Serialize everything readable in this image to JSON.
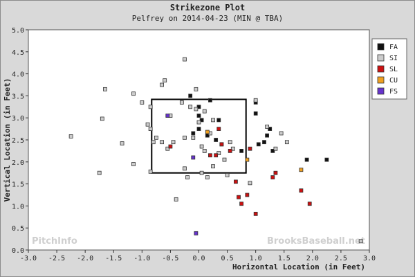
{
  "chart_data": {
    "type": "scatter",
    "title": "Strikezone Plot",
    "subtitle": "Pelfrey on 2014-04-23 (MIN @ TBA)",
    "xlabel": "Horizontal Location (in Feet)",
    "ylabel": "Vertical Location (in Feet)",
    "xlim": [
      -3.0,
      3.0
    ],
    "ylim": [
      0.0,
      5.0
    ],
    "xticks": [
      "-3.0",
      "-2.5",
      "-2.0",
      "-1.5",
      "-1.0",
      "-0.5",
      "0.0",
      "0.5",
      "1.0",
      "1.5",
      "2.0",
      "2.5",
      "3.0"
    ],
    "yticks": [
      "0.0",
      "0.5",
      "1.0",
      "1.5",
      "2.0",
      "2.5",
      "3.0",
      "3.5",
      "4.0",
      "4.5",
      "5.0"
    ],
    "strike_zone": {
      "x": [
        -0.83,
        0.83
      ],
      "y": [
        1.75,
        3.42
      ]
    },
    "legend_position": "right",
    "watermark_left": "PitchInfo",
    "watermark_right": "BrooksBaseball.net",
    "series": [
      {
        "name": "FA",
        "color": "#111111",
        "points": [
          [
            -0.15,
            3.5
          ],
          [
            0.0,
            3.25
          ],
          [
            0.2,
            3.4
          ],
          [
            0.35,
            2.95
          ],
          [
            0.0,
            3.05
          ],
          [
            0.05,
            2.95
          ],
          [
            0.0,
            2.75
          ],
          [
            -0.1,
            2.65
          ],
          [
            0.15,
            2.6
          ],
          [
            0.3,
            2.5
          ],
          [
            0.4,
            2.4
          ],
          [
            0.75,
            2.25
          ],
          [
            1.0,
            3.35
          ],
          [
            1.0,
            3.1
          ],
          [
            1.2,
            2.6
          ],
          [
            1.25,
            2.75
          ],
          [
            1.15,
            2.45
          ],
          [
            1.3,
            2.25
          ],
          [
            1.05,
            2.4
          ],
          [
            1.9,
            2.05
          ],
          [
            2.25,
            2.05
          ]
        ]
      },
      {
        "name": "SI",
        "color": "#cccccc",
        "points": [
          [
            -0.25,
            4.33
          ],
          [
            -0.05,
            3.65
          ],
          [
            -0.65,
            3.75
          ],
          [
            -0.6,
            3.85
          ],
          [
            -1.15,
            3.55
          ],
          [
            -1.65,
            3.65
          ],
          [
            -1.7,
            2.98
          ],
          [
            -2.25,
            2.58
          ],
          [
            -1.35,
            2.42
          ],
          [
            -1.15,
            1.95
          ],
          [
            -1.0,
            3.35
          ],
          [
            -0.85,
            3.25
          ],
          [
            -0.85,
            2.75
          ],
          [
            -0.9,
            2.85
          ],
          [
            -0.75,
            2.55
          ],
          [
            -0.65,
            2.45
          ],
          [
            -0.55,
            2.3
          ],
          [
            -0.45,
            2.45
          ],
          [
            -0.25,
            2.55
          ],
          [
            -0.1,
            2.55
          ],
          [
            0.05,
            2.35
          ],
          [
            -0.3,
            3.35
          ],
          [
            -0.15,
            3.25
          ],
          [
            -0.05,
            3.2
          ],
          [
            0.1,
            3.15
          ],
          [
            0.25,
            2.95
          ],
          [
            0.2,
            2.65
          ],
          [
            0.1,
            2.25
          ],
          [
            0.35,
            2.2
          ],
          [
            0.45,
            2.05
          ],
          [
            0.25,
            1.9
          ],
          [
            0.05,
            1.75
          ],
          [
            -0.25,
            1.85
          ],
          [
            -0.2,
            1.65
          ],
          [
            0.15,
            1.65
          ],
          [
            0.5,
            1.7
          ],
          [
            -0.4,
            1.15
          ],
          [
            -0.85,
            1.78
          ],
          [
            -1.75,
            1.75
          ],
          [
            0.9,
            1.52
          ],
          [
            1.45,
            2.65
          ],
          [
            1.55,
            2.45
          ],
          [
            1.0,
            3.4
          ],
          [
            1.2,
            2.8
          ],
          [
            1.35,
            2.3
          ],
          [
            2.85,
            0.2
          ],
          [
            -0.5,
            3.05
          ],
          [
            -0.8,
            2.45
          ],
          [
            0.55,
            2.45
          ],
          [
            0.0,
            2.9
          ],
          [
            0.6,
            2.3
          ]
        ]
      },
      {
        "name": "SL",
        "color": "#cc1111",
        "points": [
          [
            -0.5,
            2.35
          ],
          [
            0.2,
            2.15
          ],
          [
            0.3,
            2.15
          ],
          [
            0.35,
            2.75
          ],
          [
            0.55,
            2.25
          ],
          [
            0.9,
            2.3
          ],
          [
            0.85,
            1.25
          ],
          [
            0.75,
            1.05
          ],
          [
            0.7,
            1.2
          ],
          [
            0.65,
            1.55
          ],
          [
            1.0,
            0.82
          ],
          [
            1.35,
            1.75
          ],
          [
            1.3,
            1.65
          ],
          [
            1.8,
            1.35
          ],
          [
            1.95,
            1.05
          ],
          [
            0.4,
            2.4
          ]
        ]
      },
      {
        "name": "CU",
        "color": "#f0a020",
        "points": [
          [
            0.15,
            2.68
          ],
          [
            0.85,
            2.05
          ],
          [
            1.8,
            1.82
          ]
        ]
      },
      {
        "name": "FS",
        "color": "#6633cc",
        "points": [
          [
            -0.55,
            3.05
          ],
          [
            -0.1,
            2.1
          ],
          [
            -0.05,
            0.38
          ]
        ]
      }
    ]
  }
}
